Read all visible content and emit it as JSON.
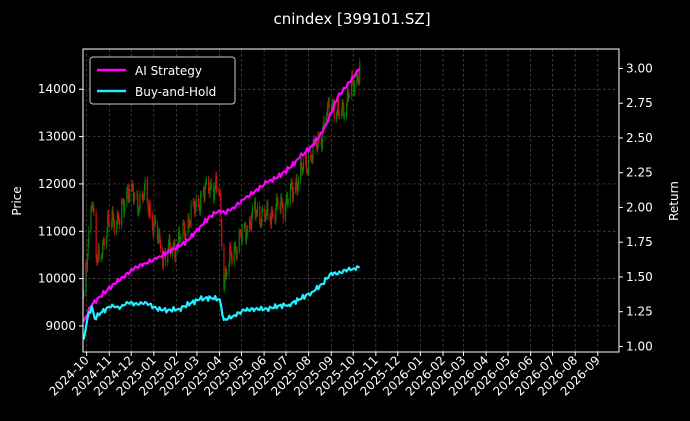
{
  "chart_data": {
    "type": "line",
    "title": "cnindex [399101.SZ]",
    "ylabel_left": "Price",
    "ylabel_right": "Return",
    "xlabel": "",
    "ylim_left": [
      8450,
      14850
    ],
    "ylim_right": [
      0.96,
      3.14
    ],
    "xlim": [
      "2024-09-26",
      "2026-09-30"
    ],
    "grid": true,
    "legend_position": "top-left",
    "background": "#000000",
    "left_ticks": [
      "9000",
      "10000",
      "11000",
      "12000",
      "13000",
      "14000"
    ],
    "right_ticks": [
      "1.00",
      "1.25",
      "1.50",
      "1.75",
      "2.00",
      "2.25",
      "2.50",
      "2.75",
      "3.00"
    ],
    "x_ticks": [
      "2024-10",
      "2024-11",
      "2024-12",
      "2025-01",
      "2025-02",
      "2025-03",
      "2025-04",
      "2025-05",
      "2025-06",
      "2025-07",
      "2025-08",
      "2025-09",
      "2025-10",
      "2025-11",
      "2025-12",
      "2026-01",
      "2026-02",
      "2026-03",
      "2026-04",
      "2026-05",
      "2026-06",
      "2026-07",
      "2026-08",
      "2026-09"
    ],
    "series": [
      {
        "name": "AI Strategy",
        "axis": "right",
        "color": "#ff00ff",
        "points": [
          [
            "2024-09-27",
            1.18
          ],
          [
            "2024-10-08",
            1.3
          ],
          [
            "2024-10-20",
            1.36
          ],
          [
            "2024-11-05",
            1.44
          ],
          [
            "2024-11-20",
            1.5
          ],
          [
            "2024-12-05",
            1.56
          ],
          [
            "2024-12-20",
            1.6
          ],
          [
            "2025-01-05",
            1.63
          ],
          [
            "2025-01-20",
            1.68
          ],
          [
            "2025-02-05",
            1.72
          ],
          [
            "2025-02-20",
            1.78
          ],
          [
            "2025-03-05",
            1.86
          ],
          [
            "2025-03-20",
            1.94
          ],
          [
            "2025-04-01",
            1.98
          ],
          [
            "2025-04-08",
            1.96
          ],
          [
            "2025-04-20",
            2.0
          ],
          [
            "2025-05-05",
            2.06
          ],
          [
            "2025-05-20",
            2.12
          ],
          [
            "2025-06-05",
            2.18
          ],
          [
            "2025-06-20",
            2.22
          ],
          [
            "2025-07-05",
            2.28
          ],
          [
            "2025-07-20",
            2.36
          ],
          [
            "2025-08-05",
            2.44
          ],
          [
            "2025-08-20",
            2.54
          ],
          [
            "2025-09-01",
            2.68
          ],
          [
            "2025-09-10",
            2.8
          ],
          [
            "2025-09-20",
            2.86
          ],
          [
            "2025-10-01",
            2.94
          ],
          [
            "2025-10-10",
            3.0
          ]
        ]
      },
      {
        "name": "Buy-and-Hold",
        "axis": "right",
        "color": "#22eeff",
        "points": [
          [
            "2024-09-27",
            1.05
          ],
          [
            "2024-10-02",
            1.2
          ],
          [
            "2024-10-08",
            1.29
          ],
          [
            "2024-10-12",
            1.2
          ],
          [
            "2024-10-20",
            1.24
          ],
          [
            "2024-11-05",
            1.3
          ],
          [
            "2024-11-15",
            1.27
          ],
          [
            "2024-11-25",
            1.32
          ],
          [
            "2024-12-10",
            1.3
          ],
          [
            "2024-12-20",
            1.32
          ],
          [
            "2025-01-05",
            1.27
          ],
          [
            "2025-01-20",
            1.26
          ],
          [
            "2025-02-05",
            1.27
          ],
          [
            "2025-02-20",
            1.31
          ],
          [
            "2025-03-05",
            1.34
          ],
          [
            "2025-03-20",
            1.35
          ],
          [
            "2025-04-01",
            1.34
          ],
          [
            "2025-04-07",
            1.19
          ],
          [
            "2025-04-20",
            1.22
          ],
          [
            "2025-05-05",
            1.26
          ],
          [
            "2025-05-20",
            1.27
          ],
          [
            "2025-06-05",
            1.27
          ],
          [
            "2025-06-20",
            1.29
          ],
          [
            "2025-07-05",
            1.3
          ],
          [
            "2025-07-20",
            1.34
          ],
          [
            "2025-08-05",
            1.39
          ],
          [
            "2025-08-20",
            1.45
          ],
          [
            "2025-09-01",
            1.53
          ],
          [
            "2025-09-10",
            1.52
          ],
          [
            "2025-09-20",
            1.55
          ],
          [
            "2025-10-01",
            1.56
          ],
          [
            "2025-10-10",
            1.57
          ]
        ]
      }
    ],
    "price": {
      "axis": "left",
      "type": "candlestick",
      "up_color": "#008000",
      "down_color": "#cc1111",
      "path": [
        [
          "2024-09-27",
          9500
        ],
        [
          "2024-10-08",
          11800
        ],
        [
          "2024-10-15",
          10300
        ],
        [
          "2024-10-22",
          10700
        ],
        [
          "2024-11-05",
          11300
        ],
        [
          "2024-11-15",
          11200
        ],
        [
          "2024-11-25",
          11900
        ],
        [
          "2024-12-10",
          11600
        ],
        [
          "2024-12-20",
          11800
        ],
        [
          "2025-01-05",
          10900
        ],
        [
          "2025-01-15",
          10500
        ],
        [
          "2025-02-05",
          10800
        ],
        [
          "2025-02-20",
          11300
        ],
        [
          "2025-03-05",
          11700
        ],
        [
          "2025-03-20",
          12000
        ],
        [
          "2025-04-01",
          11800
        ],
        [
          "2025-04-07",
          10000
        ],
        [
          "2025-04-20",
          10600
        ],
        [
          "2025-05-05",
          11000
        ],
        [
          "2025-05-20",
          11400
        ],
        [
          "2025-06-05",
          11300
        ],
        [
          "2025-06-20",
          11500
        ],
        [
          "2025-07-05",
          11700
        ],
        [
          "2025-07-20",
          12200
        ],
        [
          "2025-08-05",
          12600
        ],
        [
          "2025-08-20",
          13100
        ],
        [
          "2025-09-01",
          13800
        ],
        [
          "2025-09-10",
          13400
        ],
        [
          "2025-09-20",
          13700
        ],
        [
          "2025-10-01",
          14100
        ],
        [
          "2025-10-10",
          14400
        ]
      ]
    }
  }
}
